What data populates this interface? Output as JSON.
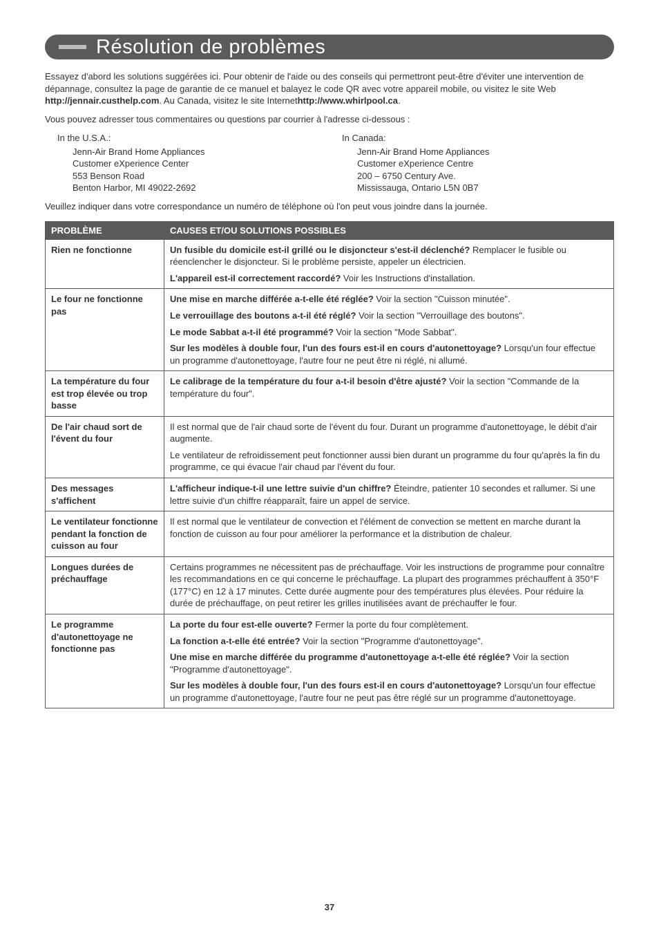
{
  "title": "Résolution de problèmes",
  "intro_html": "Essayez d'abord les solutions suggérées ici. Pour obtenir de l'aide ou des conseils qui permettront peut-être d'éviter une intervention de dépannage, consultez la page de garantie de ce manuel et balayez le code QR avec votre appareil mobile, ou visitez le site Web <b>http://jennair.custhelp.com</b>. Au Canada, visitez le site Internet<b>http://www.whirlpool.ca</b>.",
  "sub_intro": "Vous pouvez adresser tous commentaires ou questions par courrier à l'adresse ci-dessous :",
  "addresses": [
    {
      "label": "In the U.S.A.:",
      "lines": [
        "Jenn-Air Brand Home Appliances",
        "Customer eXperience Center",
        "553 Benson Road",
        "Benton Harbor, MI 49022-2692"
      ]
    },
    {
      "label": "In Canada:",
      "lines": [
        "Jenn-Air Brand Home Appliances",
        "Customer eXperience Centre",
        "200 – 6750 Century Ave.",
        "Mississauga, Ontario L5N 0B7"
      ]
    }
  ],
  "corr_note": "Veuillez indiquer dans votre correspondance un numéro de téléphone où l'on peut vous joindre dans la journée.",
  "table": {
    "headers": [
      "PROBLÈME",
      "CAUSES ET/OU SOLUTIONS POSSIBLES"
    ],
    "rows": [
      {
        "problem": "Rien ne fonctionne",
        "solutions": [
          {
            "bold": "Un fusible du domicile est-il grillé ou le disjoncteur s'est-il déclenché?",
            "rest": " Remplacer le fusible ou réenclencher le disjoncteur. Si le problème persiste, appeler un électricien."
          },
          {
            "bold": "L'appareil est-il correctement raccordé?",
            "rest": " Voir les Instructions d'installation."
          }
        ]
      },
      {
        "problem": "Le four ne fonctionne pas",
        "solutions": [
          {
            "bold": "Une mise en marche différée a-t-elle été réglée?",
            "rest": " Voir la section \"Cuisson minutée\"."
          },
          {
            "bold": "Le verrouillage des boutons a-t-il été réglé?",
            "rest": " Voir la section \"Verrouillage des boutons\"."
          },
          {
            "bold": "Le mode Sabbat a-t-il été programmé?",
            "rest": " Voir la section \"Mode Sabbat\"."
          },
          {
            "bold": "Sur les modèles à double four, l'un des fours est-il en cours d'autonettoyage?",
            "rest": " Lorsqu'un four effectue un programme d'autonettoyage, l'autre four ne peut être ni réglé, ni allumé."
          }
        ]
      },
      {
        "problem": "La température du four est trop élevée ou trop basse",
        "solutions": [
          {
            "bold": "Le calibrage de la température du four a-t-il besoin d'être ajusté?",
            "rest": " Voir la section \"Commande de la température du four\"."
          }
        ]
      },
      {
        "problem": "De l'air chaud sort de l'évent du four",
        "solutions": [
          {
            "bold": "",
            "rest": "Il est normal que de l'air chaud sorte de l'évent du four. Durant un programme d'autonettoyage, le débit d'air augmente."
          },
          {
            "bold": "",
            "rest": "Le ventilateur de refroidissement peut fonctionner aussi bien durant un programme du four qu'après la fin du programme, ce qui évacue l'air chaud par l'évent du four."
          }
        ]
      },
      {
        "problem": "Des messages s'affichent",
        "solutions": [
          {
            "bold": "L'afficheur indique-t-il une lettre suivie d'un chiffre?",
            "rest": " Éteindre, patienter 10 secondes et rallumer. Si une lettre suivie d'un chiffre réapparaît, faire un appel de service."
          }
        ]
      },
      {
        "problem": "Le ventilateur fonctionne pendant la fonction de cuisson au four",
        "solutions": [
          {
            "bold": "",
            "rest": "Il est normal que le ventilateur de convection et l'élément de convection se mettent en marche durant la fonction de cuisson au four pour améliorer la performance et la distribution de chaleur."
          }
        ]
      },
      {
        "problem": "Longues durées de préchauffage",
        "solutions": [
          {
            "bold": "",
            "rest": "Certains programmes ne nécessitent pas de préchauffage. Voir les instructions de programme pour connaître les recommandations en ce qui concerne le préchauffage. La plupart des programmes préchauffent à 350°F (177°C) en 12 à 17 minutes. Cette durée augmente pour des températures plus élevées. Pour réduire la durée de préchauffage, on peut retirer les grilles inutilisées avant de préchauffer le four."
          }
        ]
      },
      {
        "problem": "Le programme d'autonettoyage ne fonctionne pas",
        "solutions": [
          {
            "bold": "La porte du four est-elle ouverte?",
            "rest": " Fermer la porte du four complètement."
          },
          {
            "bold": "La fonction a-t-elle été entrée?",
            "rest": " Voir la section \"Programme d'autonettoyage\"."
          },
          {
            "bold": "Une mise en marche différée du programme d'autonettoyage a-t-elle été réglée?",
            "rest": " Voir la section \"Programme d'autonettoyage\"."
          },
          {
            "bold": "Sur les modèles à double four, l'un des fours est-il en cours d'autonettoyage?",
            "rest": " Lorsqu'un four effectue un programme d'autonettoyage, l'autre four ne peut pas être réglé sur un programme d'autonettoyage."
          }
        ]
      }
    ]
  },
  "page_number": "37"
}
